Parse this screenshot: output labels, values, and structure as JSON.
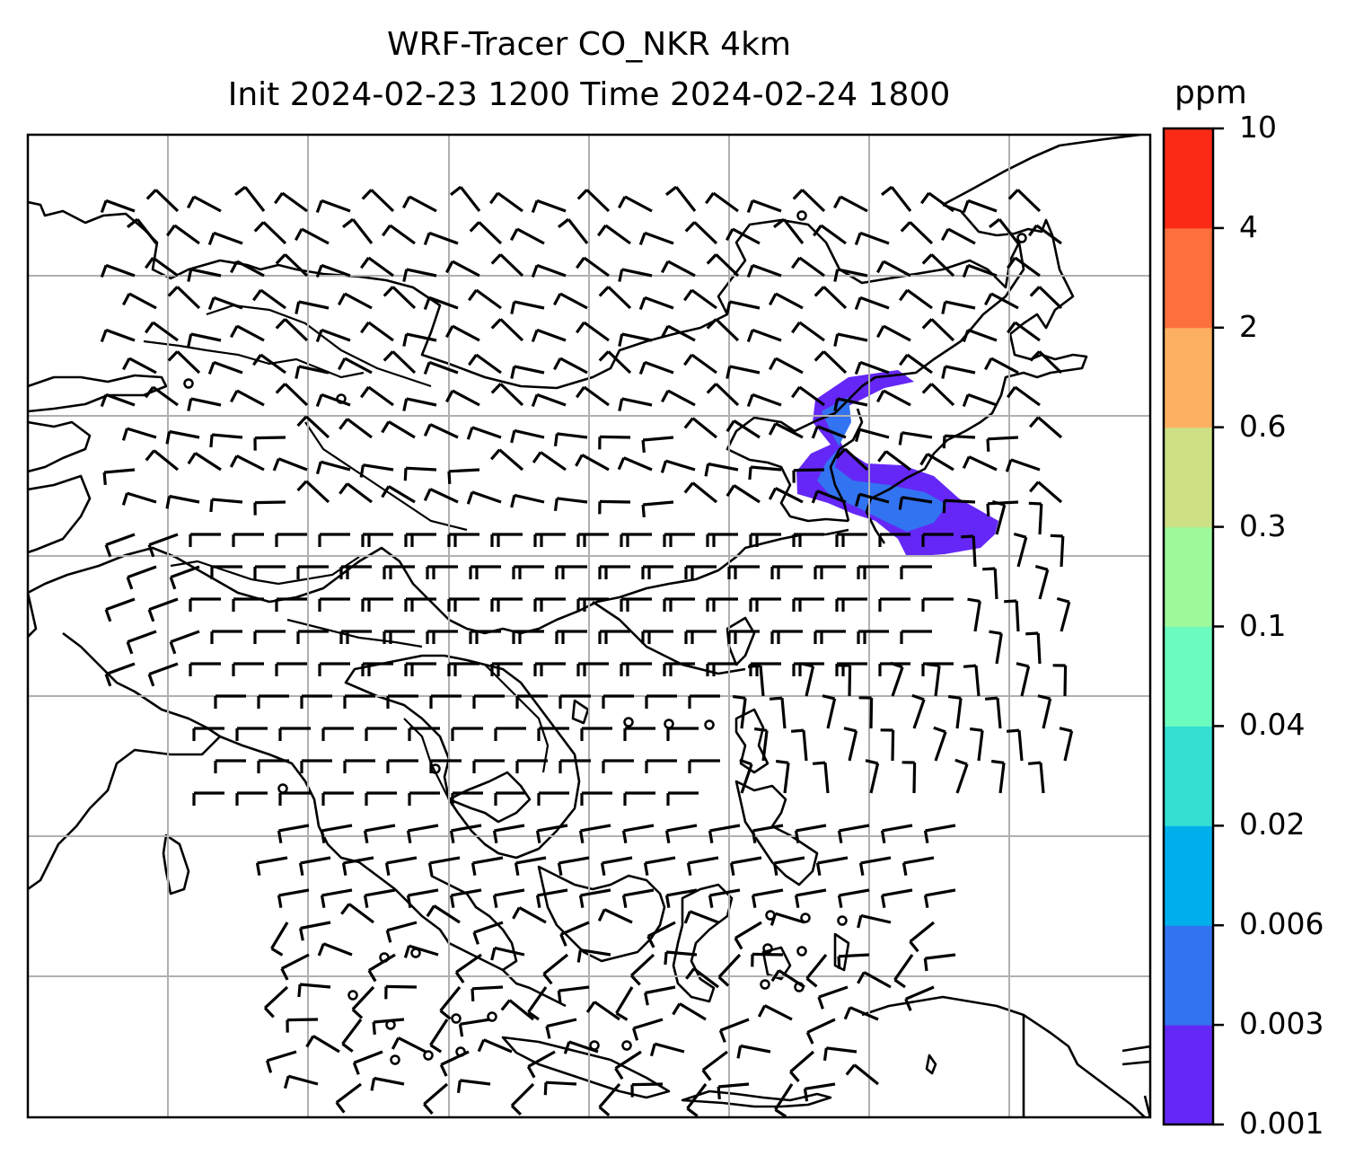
{
  "title": {
    "line1": "WRF-Tracer CO_NKR 4km",
    "line2": "Init 2024-02-23 1200 Time 2024-02-24 1800"
  },
  "colorbar": {
    "unit": "ppm",
    "levels": [
      "0.001",
      "0.003",
      "0.006",
      "0.02",
      "0.04",
      "0.1",
      "0.3",
      "0.6",
      "2",
      "4",
      "10"
    ],
    "colors": [
      "#6527f6",
      "#3273f1",
      "#00b0ec",
      "#34dfd2",
      "#6cfbbe",
      "#9cf99c",
      "#cde085",
      "#fdb062",
      "#fd6f3c",
      "#fb2a17"
    ]
  },
  "map": {
    "gridline_color": "#b0b0b0",
    "coastline_color": "#000000",
    "plume_levels": [
      "0.001",
      "0.003"
    ],
    "wind_barbs": "black"
  }
}
